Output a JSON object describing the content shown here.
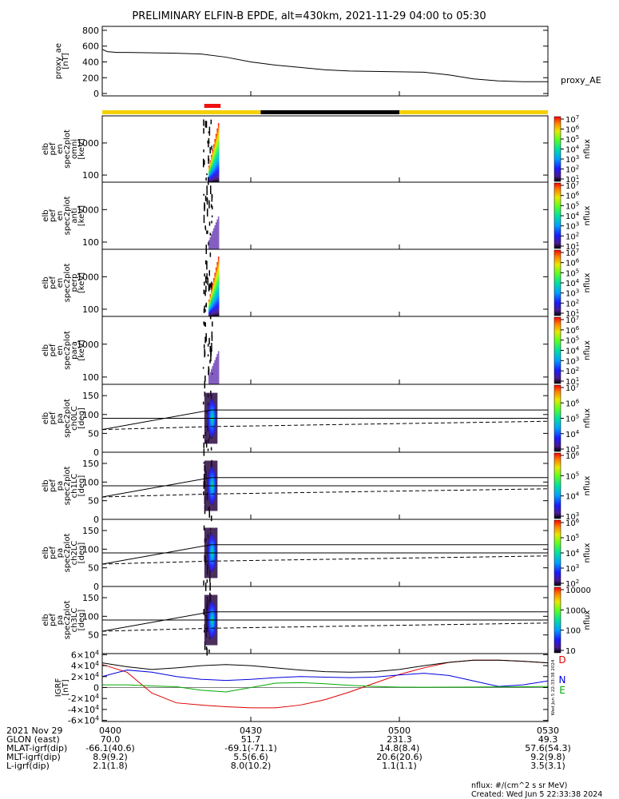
{
  "title": "PRELIMINARY ELFIN-B EPDE, alt=430km, 2021-11-29 04:00 to 05:30",
  "footer": {
    "flux_units": "nflux: #/(cm^2 s sr MeV)",
    "created": "Created: Wed Jun  5 22:33:38 2024",
    "stamp": "Wed Jun  5 22:33:38 2024"
  },
  "orbit_table": {
    "row_labels": [
      "2021 Nov 29",
      "GLON (east)",
      "MLAT-igrf(dip)",
      "MLT-igrf(dip)",
      "L-igrf(dip)"
    ],
    "columns": [
      {
        "time": "0400",
        "values": [
          "70.0",
          "-66.1(40.6)",
          "8.9(9.2)",
          "2.1(1.8)"
        ]
      },
      {
        "time": "0430",
        "values": [
          "51.7",
          "-69.1(-71.1)",
          "5.5(6.6)",
          "8.0(10.2)"
        ]
      },
      {
        "time": "0500",
        "values": [
          "231.3",
          "14.8(8.4)",
          "20.6(20.6)",
          "1.1(1.1)"
        ]
      },
      {
        "time": "0530",
        "values": [
          "49.3",
          "57.6(54.3)",
          "9.2(9.8)",
          "3.5(3.1)"
        ]
      }
    ]
  },
  "phase_bar": {
    "colors": {
      "yellow": "#f5d000",
      "red": "#ee1111",
      "black": "#000000"
    },
    "segments": [
      {
        "from": 0,
        "to": 32,
        "color": "yellow"
      },
      {
        "from": 32,
        "to": 60,
        "color": "black"
      },
      {
        "from": 60,
        "to": 90,
        "color": "yellow"
      }
    ],
    "science_zone": {
      "from": 20.6,
      "to": 23.9,
      "color": "red"
    }
  },
  "chart_data": [
    {
      "type": "line",
      "panel": "proxy_ae",
      "ylabel": [
        "proxy_ae",
        "[nT]"
      ],
      "legend": "proxy_AE",
      "ylim": [
        -30,
        850
      ],
      "yticks": [
        "0",
        "200",
        "400",
        "600",
        "800"
      ],
      "ytick_values": [
        0,
        200,
        400,
        600,
        800
      ],
      "x_minutes": [
        0,
        1,
        3,
        5,
        10,
        15,
        20,
        25,
        30,
        35,
        40,
        45,
        50,
        55,
        60,
        65,
        70,
        75,
        80,
        85,
        90
      ],
      "values": [
        560,
        530,
        520,
        520,
        515,
        510,
        500,
        460,
        400,
        360,
        330,
        300,
        285,
        280,
        275,
        270,
        235,
        185,
        160,
        150,
        150
      ]
    },
    {
      "type": "heatmap",
      "panel": "elb_pef_en_spec2plot_omni",
      "ylabel": [
        "elb",
        "pef",
        "en",
        "spec2plot",
        "omni",
        "[keV]"
      ],
      "ylim": [
        60,
        7000
      ],
      "yscale": "log",
      "yticks": [
        "100",
        "1000"
      ],
      "ytick_values": [
        100,
        1000
      ],
      "time_range_minutes": [
        20.3,
        23.6
      ],
      "colorbar": {
        "label": "nflux",
        "ticks": [
          "10^1",
          "10^2",
          "10^3",
          "10^4",
          "10^5",
          "10^6",
          "10^7"
        ]
      }
    },
    {
      "type": "heatmap",
      "panel": "elb_pef_en_spec2plot_anti",
      "ylabel": [
        "elb",
        "pef",
        "en",
        "spec2plot",
        "anti",
        "[keV]"
      ],
      "ylim": [
        60,
        7000
      ],
      "yscale": "log",
      "yticks": [
        "100",
        "1000"
      ],
      "ytick_values": [
        100,
        1000
      ],
      "time_range_minutes": [
        20.3,
        23.6
      ],
      "colorbar": {
        "label": "nflux",
        "ticks": [
          "10^1",
          "10^2",
          "10^3",
          "10^4",
          "10^5",
          "10^6",
          "10^7"
        ]
      }
    },
    {
      "type": "heatmap",
      "panel": "elb_pef_en_spec2plot_perp",
      "ylabel": [
        "elb",
        "pef",
        "en",
        "spec2plot",
        "perp",
        "[keV]"
      ],
      "ylim": [
        60,
        7000
      ],
      "yscale": "log",
      "yticks": [
        "100",
        "1000"
      ],
      "ytick_values": [
        100,
        1000
      ],
      "time_range_minutes": [
        20.3,
        23.6
      ],
      "colorbar": {
        "label": "nflux",
        "ticks": [
          "10^1",
          "10^2",
          "10^3",
          "10^4",
          "10^5",
          "10^6",
          "10^7"
        ]
      }
    },
    {
      "type": "heatmap",
      "panel": "elb_pef_en_spec2plot_para",
      "ylabel": [
        "elb",
        "pef",
        "en",
        "spec2plot",
        "para",
        "[keV]"
      ],
      "ylim": [
        60,
        7000
      ],
      "yscale": "log",
      "yticks": [
        "100",
        "1000"
      ],
      "ytick_values": [
        100,
        1000
      ],
      "time_range_minutes": [
        20.3,
        23.6
      ],
      "colorbar": {
        "label": "nflux",
        "ticks": [
          "10^1",
          "10^2",
          "10^3",
          "10^4",
          "10^5",
          "10^6",
          "10^7"
        ]
      }
    },
    {
      "type": "heatmap",
      "panel": "elb_pef_pa_spec2plot_ch0LC",
      "ylabel": [
        "elb",
        "pef",
        "pa",
        "spec2plot",
        "ch0LC",
        "[deg]"
      ],
      "ylim": [
        0,
        180
      ],
      "yticks": [
        "0",
        "50",
        "100",
        "150"
      ],
      "ytick_values": [
        0,
        50,
        100,
        150
      ],
      "hline": 90,
      "time_range_minutes": [
        20.3,
        23.6
      ],
      "loss_cone": {
        "x": [
          0,
          22,
          90
        ],
        "values": [
          60,
          112,
          112
        ]
      },
      "anti_loss_cone": {
        "x": [
          0,
          22,
          90
        ],
        "values": [
          60,
          68,
          82
        ]
      },
      "colorbar": {
        "label": "nflux",
        "ticks": [
          "10^3",
          "10^4",
          "10^5",
          "10^6",
          "10^7"
        ]
      }
    },
    {
      "type": "heatmap",
      "panel": "elb_pef_pa_spec2plot_ch1LC",
      "ylabel": [
        "elb",
        "pef",
        "pa",
        "spec2plot",
        "ch1LC",
        "[deg]"
      ],
      "ylim": [
        0,
        180
      ],
      "yticks": [
        "0",
        "50",
        "100",
        "150"
      ],
      "ytick_values": [
        0,
        50,
        100,
        150
      ],
      "hline": 90,
      "time_range_minutes": [
        20.3,
        23.6
      ],
      "loss_cone": {
        "x": [
          0,
          22,
          90
        ],
        "values": [
          60,
          112,
          112
        ]
      },
      "anti_loss_cone": {
        "x": [
          0,
          22,
          90
        ],
        "values": [
          60,
          68,
          82
        ]
      },
      "colorbar": {
        "label": "nflux",
        "ticks": [
          "10^3",
          "10^4",
          "10^5",
          "10^6"
        ]
      }
    },
    {
      "type": "heatmap",
      "panel": "elb_pef_pa_spec2plot_ch2LC",
      "ylabel": [
        "elb",
        "pef",
        "pa",
        "spec2plot",
        "ch2LC",
        "[deg]"
      ],
      "ylim": [
        0,
        180
      ],
      "yticks": [
        "0",
        "50",
        "100",
        "150"
      ],
      "ytick_values": [
        0,
        50,
        100,
        150
      ],
      "hline": 90,
      "time_range_minutes": [
        20.3,
        23.6
      ],
      "loss_cone": {
        "x": [
          0,
          22,
          90
        ],
        "values": [
          60,
          112,
          112
        ]
      },
      "anti_loss_cone": {
        "x": [
          0,
          22,
          90
        ],
        "values": [
          60,
          68,
          82
        ]
      },
      "colorbar": {
        "label": "nflux",
        "ticks": [
          "10^2",
          "10^3",
          "10^4",
          "10^5",
          "10^6"
        ]
      }
    },
    {
      "type": "heatmap",
      "panel": "elb_pef_pa_spec2plot_ch3LC",
      "ylabel": [
        "elb",
        "pef",
        "pa",
        "spec2plot",
        "ch3LC",
        "[deg]"
      ],
      "ylim": [
        0,
        180
      ],
      "yticks": [
        "50",
        "100",
        "150"
      ],
      "ytick_values": [
        50,
        100,
        150
      ],
      "hline": 90,
      "time_range_minutes": [
        20.3,
        23.6
      ],
      "loss_cone": {
        "x": [
          0,
          22,
          90
        ],
        "values": [
          60,
          112,
          112
        ]
      },
      "anti_loss_cone": {
        "x": [
          0,
          22,
          90
        ],
        "values": [
          60,
          68,
          82
        ]
      },
      "colorbar": {
        "label": "nflux",
        "ticks": [
          "10",
          "100",
          "1000",
          "10000"
        ]
      }
    },
    {
      "type": "line",
      "panel": "igrf",
      "ylabel": [
        "IGRF",
        "[nT]"
      ],
      "ylim": [
        -62000,
        62000
      ],
      "yticks": [
        "-6×10^4",
        "-4×10^4",
        "-2×10^4",
        "0",
        "2×10^4",
        "4×10^4",
        "6×10^4"
      ],
      "ytick_values": [
        -60000,
        -40000,
        -20000,
        0,
        20000,
        40000,
        60000
      ],
      "series": [
        {
          "name": "D",
          "color": "#dd0000",
          "x": [
            0,
            5,
            10,
            15,
            20,
            25,
            30,
            35,
            40,
            45,
            50,
            55,
            60,
            65,
            70,
            75,
            80,
            85,
            90
          ],
          "values": [
            42000,
            28000,
            -10000,
            -28000,
            -32000,
            -35000,
            -37000,
            -37000,
            -32000,
            -22000,
            -8000,
            8000,
            24000,
            36000,
            46000,
            50000,
            50000,
            48000,
            45000
          ]
        },
        {
          "name": "N",
          "color": "#0000dd",
          "x": [
            0,
            5,
            10,
            15,
            20,
            25,
            30,
            35,
            40,
            45,
            50,
            55,
            60,
            65,
            70,
            75,
            80,
            85,
            90
          ],
          "values": [
            20000,
            32000,
            28000,
            20000,
            15000,
            13000,
            15000,
            18000,
            20000,
            19000,
            18000,
            19000,
            23000,
            26000,
            22000,
            12000,
            2000,
            5000,
            12000
          ]
        },
        {
          "name": "E",
          "color": "#00aa00",
          "x": [
            0,
            5,
            10,
            15,
            20,
            25,
            30,
            35,
            40,
            45,
            50,
            55,
            60,
            65,
            70,
            75,
            80,
            85,
            90
          ],
          "values": [
            5000,
            5000,
            3000,
            1500,
            -5000,
            -8000,
            0,
            8000,
            9000,
            7000,
            4000,
            2000,
            800,
            500,
            800,
            1000,
            1200,
            1500,
            2000
          ]
        },
        {
          "name": "",
          "color": "#000000",
          "x": [
            0,
            5,
            10,
            15,
            20,
            25,
            30,
            35,
            40,
            45,
            50,
            55,
            60,
            65,
            70,
            75,
            80,
            85,
            90
          ],
          "values": [
            45000,
            38000,
            33000,
            36000,
            40000,
            42000,
            40000,
            36000,
            32000,
            29000,
            28000,
            29000,
            33000,
            40000,
            46000,
            50000,
            50000,
            48000,
            45000
          ]
        }
      ]
    }
  ]
}
